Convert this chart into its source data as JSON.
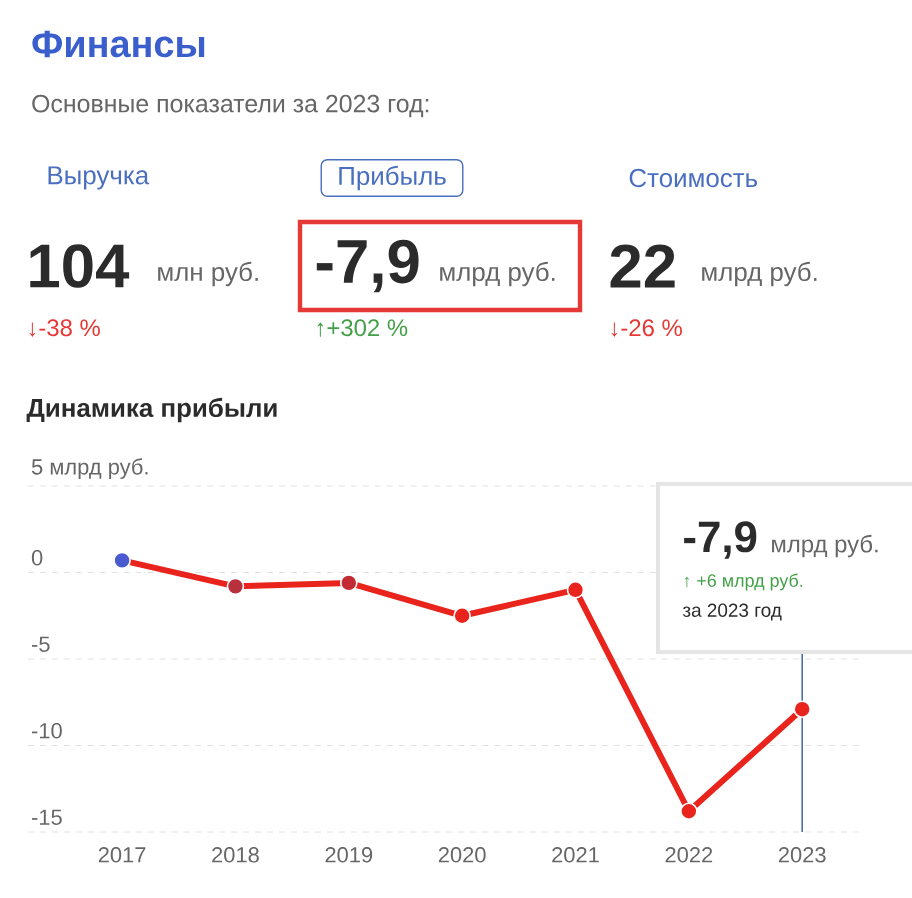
{
  "chart_data": {
    "type": "line",
    "title": "Финансы",
    "subtitle": "Основные показатели за 2023 год:",
    "x": [
      2017,
      2018,
      2019,
      2020,
      2021,
      2022,
      2023
    ],
    "series": [
      {
        "color": "#e8241c",
        "colors": [
          "#4a5bd0",
          "#b8303c",
          "#c22a34",
          "#e8241c",
          "#e8241c",
          "#e8241c",
          "#e8241c"
        ],
        "values": [
          0.7,
          -0.8,
          -0.6,
          -2.5,
          -1.0,
          -13.8,
          -7.9
        ]
      }
    ],
    "xlim": [
      2016.17,
      2023.51
    ],
    "ylim": [
      -15,
      5
    ],
    "xticks": [
      2017,
      2018,
      2019,
      2020,
      2021,
      2022,
      2023
    ],
    "yticks": [
      {
        "value": 5,
        "label": "5 млрд руб."
      },
      0,
      -5,
      -10,
      -15
    ],
    "grid": "y",
    "marker": "circle",
    "line_style": "solid",
    "ref_lines": [
      {
        "axis": "x",
        "value": 2023,
        "color": "#4a6fa5"
      }
    ],
    "annotations": [
      "Выручка",
      "Прибыль",
      "Стоимость",
      "104",
      "млн руб.",
      "-7,9",
      "млрд руб.",
      "22",
      "млрд руб.",
      "↓-38 %",
      "↑+302 %",
      "↓-26 %",
      "Динамика прибыли",
      "-7,9",
      "млрд руб.",
      "↑ +6 млрд руб.",
      "за 2023 год"
    ]
  }
}
